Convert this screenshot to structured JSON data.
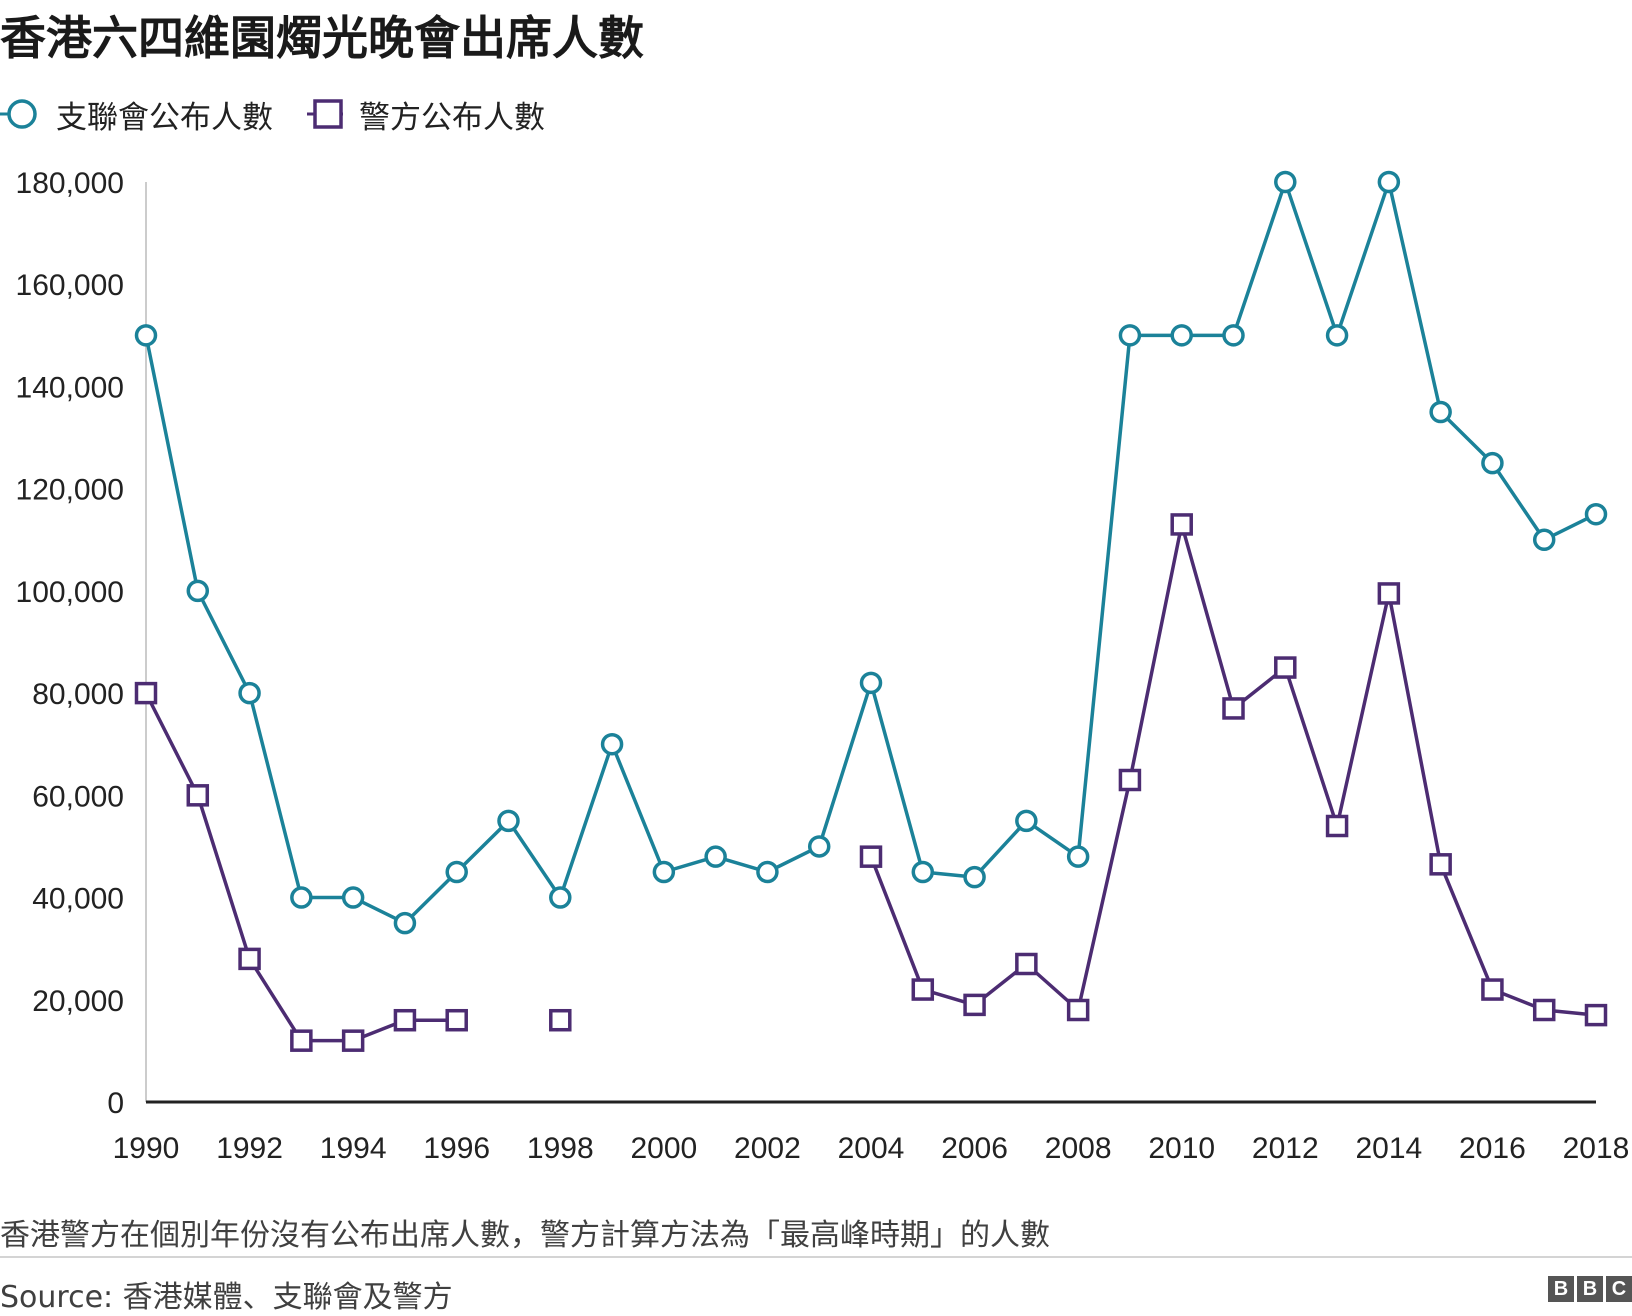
{
  "chart_data": {
    "type": "line",
    "title": "香港六四維園燭光晚會出席人數",
    "x": [
      1990,
      1991,
      1992,
      1993,
      1994,
      1995,
      1996,
      1997,
      1998,
      1999,
      2000,
      2001,
      2002,
      2003,
      2004,
      2005,
      2006,
      2007,
      2008,
      2009,
      2010,
      2011,
      2012,
      2013,
      2014,
      2015,
      2016,
      2017,
      2018
    ],
    "x_tick_labels": [
      "1990",
      "1992",
      "1994",
      "1996",
      "1998",
      "2000",
      "2002",
      "2004",
      "2006",
      "2008",
      "2010",
      "2012",
      "2014",
      "2016",
      "2018"
    ],
    "y_tick_labels": [
      "0",
      "20,000",
      "40,000",
      "60,000",
      "80,000",
      "100,000",
      "120,000",
      "140,000",
      "160,000",
      "180,000"
    ],
    "ylim": [
      0,
      180000
    ],
    "xlim": [
      1990,
      2018
    ],
    "legend_position": "top-left",
    "grid": false,
    "series": [
      {
        "name": "支聯會公布人數",
        "marker": "circle",
        "color": "#1b8299",
        "values": [
          150000,
          100000,
          80000,
          40000,
          40000,
          35000,
          45000,
          55000,
          40000,
          70000,
          45000,
          48000,
          45000,
          50000,
          82000,
          45000,
          44000,
          55000,
          48000,
          150000,
          150000,
          150000,
          180000,
          150000,
          180000,
          135000,
          125000,
          110000,
          115000
        ]
      },
      {
        "name": "警方公布人數",
        "marker": "square",
        "color": "#4c2c72",
        "values": [
          80000,
          60000,
          28000,
          12000,
          12000,
          16000,
          16000,
          null,
          16000,
          null,
          null,
          null,
          null,
          null,
          48000,
          22000,
          19000,
          27000,
          18000,
          63000,
          113000,
          77000,
          85000,
          54000,
          99500,
          46500,
          22000,
          18000,
          17000
        ]
      }
    ],
    "note": "香港警方在個別年份沒有公布出席人數，警方計算方法為「最高峰時期」的人數",
    "source": "Source: 香港媒體、支聯會及警方"
  },
  "logo": [
    "B",
    "B",
    "C"
  ]
}
